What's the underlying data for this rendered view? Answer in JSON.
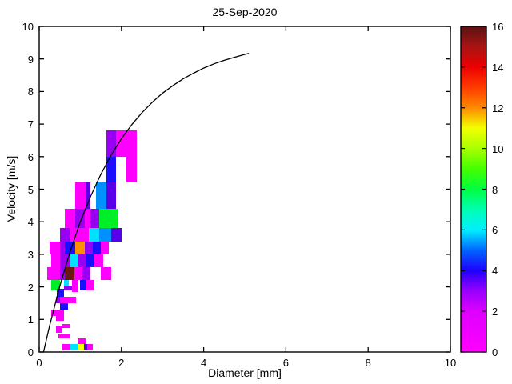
{
  "title": "25-Sep-2020",
  "chart_data": {
    "type": "heatmap",
    "title": "25-Sep-2020",
    "xlabel": "Diameter [mm]",
    "ylabel": "Velocity [m/s]",
    "xlim": [
      0,
      10
    ],
    "ylim": [
      0,
      10
    ],
    "xticks": [
      0,
      2,
      4,
      6,
      8,
      10
    ],
    "yticks": [
      0,
      1,
      2,
      3,
      4,
      5,
      6,
      7,
      8,
      9,
      10
    ],
    "grid": false,
    "colorbar": {
      "lim": [
        0,
        16
      ],
      "ticks": [
        0,
        2,
        4,
        6,
        8,
        10,
        12,
        14,
        16
      ],
      "position": "right",
      "gradient": [
        {
          "v": 0,
          "color": "#FF00FF"
        },
        {
          "v": 2,
          "color": "#DD00FF"
        },
        {
          "v": 3,
          "color": "#9900FF"
        },
        {
          "v": 4,
          "color": "#1E00FF"
        },
        {
          "v": 5,
          "color": "#0066FF"
        },
        {
          "v": 6,
          "color": "#00EFFF"
        },
        {
          "v": 7,
          "color": "#00FFB2"
        },
        {
          "v": 8,
          "color": "#00FF40"
        },
        {
          "v": 9,
          "color": "#44FF00"
        },
        {
          "v": 10,
          "color": "#A8FF00"
        },
        {
          "v": 11,
          "color": "#F2FF00"
        },
        {
          "v": 12,
          "color": "#FF8A00"
        },
        {
          "v": 13,
          "color": "#FF3C00"
        },
        {
          "v": 14,
          "color": "#ED0000"
        },
        {
          "v": 15,
          "color": "#A81414"
        },
        {
          "v": 16,
          "color": "#5C1212"
        }
      ]
    },
    "cells": [
      {
        "d": [
          1.625,
          1.875
        ],
        "v": [
          6.0,
          6.8
        ],
        "value": 2,
        "color": "#9900F2"
      },
      {
        "d": [
          1.875,
          2.375
        ],
        "v": [
          6.0,
          6.8
        ],
        "value": 1,
        "color": "#FF00FF"
      },
      {
        "d": [
          1.625,
          1.875
        ],
        "v": [
          5.2,
          6.0
        ],
        "value": 4,
        "color": "#1A10FF"
      },
      {
        "d": [
          2.125,
          2.375
        ],
        "v": [
          5.2,
          6.0
        ],
        "value": 1,
        "color": "#FF00FF"
      },
      {
        "d": [
          0.875,
          1.125
        ],
        "v": [
          4.4,
          5.2
        ],
        "value": 1,
        "color": "#FF00FF"
      },
      {
        "d": [
          1.125,
          1.25
        ],
        "v": [
          4.4,
          5.2
        ],
        "value": 3,
        "color": "#5A00E8"
      },
      {
        "d": [
          1.375,
          1.625
        ],
        "v": [
          4.4,
          5.2
        ],
        "value": 5,
        "color": "#0091FF"
      },
      {
        "d": [
          1.625,
          1.875
        ],
        "v": [
          4.4,
          5.2
        ],
        "value": 3,
        "color": "#5A00E8"
      },
      {
        "d": [
          0.625,
          0.875
        ],
        "v": [
          3.8,
          4.4
        ],
        "value": 1,
        "color": "#FF00FF"
      },
      {
        "d": [
          0.875,
          1.1
        ],
        "v": [
          3.8,
          4.4
        ],
        "value": 2,
        "color": "#9900F2"
      },
      {
        "d": [
          1.1,
          1.25
        ],
        "v": [
          3.8,
          4.4
        ],
        "value": 1,
        "color": "#FF00FF"
      },
      {
        "d": [
          1.25,
          1.45
        ],
        "v": [
          3.8,
          4.4
        ],
        "value": 2,
        "color": "#9900F2"
      },
      {
        "d": [
          1.45,
          1.9
        ],
        "v": [
          3.8,
          4.4
        ],
        "value": 8,
        "color": "#00EE28"
      },
      {
        "d": [
          0.5,
          0.75
        ],
        "v": [
          3.4,
          3.8
        ],
        "value": 2,
        "color": "#9900F2"
      },
      {
        "d": [
          0.75,
          1.2
        ],
        "v": [
          3.4,
          3.8
        ],
        "value": 1,
        "color": "#FF00FF"
      },
      {
        "d": [
          1.2,
          1.45
        ],
        "v": [
          3.4,
          3.8
        ],
        "value": 6,
        "color": "#00E0FF"
      },
      {
        "d": [
          1.45,
          1.75
        ],
        "v": [
          3.4,
          3.8
        ],
        "value": 5,
        "color": "#0091FF"
      },
      {
        "d": [
          1.75,
          2.0
        ],
        "v": [
          3.4,
          3.8
        ],
        "value": 3,
        "color": "#5A00E8"
      },
      {
        "d": [
          0.25,
          0.5
        ],
        "v": [
          3.0,
          3.4
        ],
        "value": 1,
        "color": "#FF00FF"
      },
      {
        "d": [
          0.5,
          0.625
        ],
        "v": [
          3.0,
          3.4
        ],
        "value": 2,
        "color": "#9900F2"
      },
      {
        "d": [
          0.625,
          0.875
        ],
        "v": [
          3.0,
          3.4
        ],
        "value": 4,
        "color": "#1A10FF"
      },
      {
        "d": [
          0.875,
          1.1
        ],
        "v": [
          3.0,
          3.4
        ],
        "value": 11,
        "color": "#FF9000"
      },
      {
        "d": [
          1.1,
          1.3
        ],
        "v": [
          3.0,
          3.4
        ],
        "value": 2,
        "color": "#9900F2"
      },
      {
        "d": [
          1.3,
          1.5
        ],
        "v": [
          3.0,
          3.4
        ],
        "value": 4,
        "color": "#1A10FF"
      },
      {
        "d": [
          1.5,
          1.7
        ],
        "v": [
          3.0,
          3.4
        ],
        "value": 1,
        "color": "#FF00FF"
      },
      {
        "d": [
          0.3,
          0.5
        ],
        "v": [
          2.6,
          3.0
        ],
        "value": 1,
        "color": "#FF00FF"
      },
      {
        "d": [
          0.5,
          0.75
        ],
        "v": [
          2.6,
          3.0
        ],
        "value": 2,
        "color": "#9900F2"
      },
      {
        "d": [
          0.75,
          0.95
        ],
        "v": [
          2.6,
          3.0
        ],
        "value": 6,
        "color": "#00E0FF"
      },
      {
        "d": [
          0.95,
          1.15
        ],
        "v": [
          2.6,
          3.0
        ],
        "value": 2,
        "color": "#9900F2"
      },
      {
        "d": [
          1.15,
          1.35
        ],
        "v": [
          2.6,
          3.0
        ],
        "value": 4,
        "color": "#1A10FF"
      },
      {
        "d": [
          1.35,
          1.55
        ],
        "v": [
          2.6,
          3.0
        ],
        "value": 1,
        "color": "#FF00FF"
      },
      {
        "d": [
          0.2,
          0.5
        ],
        "v": [
          2.2,
          2.6
        ],
        "value": 1,
        "color": "#FF00FF"
      },
      {
        "d": [
          0.5,
          0.625
        ],
        "v": [
          2.2,
          2.6
        ],
        "value": 2,
        "color": "#9900F2"
      },
      {
        "d": [
          0.625,
          0.85
        ],
        "v": [
          2.2,
          2.6
        ],
        "value": 15,
        "color": "#6B1712"
      },
      {
        "d": [
          0.85,
          1.05
        ],
        "v": [
          2.2,
          2.6
        ],
        "value": 1,
        "color": "#FF00FF"
      },
      {
        "d": [
          1.05,
          1.25
        ],
        "v": [
          2.2,
          2.6
        ],
        "value": 2,
        "color": "#9900F2"
      },
      {
        "d": [
          1.5,
          1.75
        ],
        "v": [
          2.2,
          2.6
        ],
        "value": 1,
        "color": "#FF00FF"
      },
      {
        "d": [
          0.3,
          0.5
        ],
        "v": [
          1.9,
          2.2
        ],
        "value": 8,
        "color": "#00EE28"
      },
      {
        "d": [
          0.6,
          0.72
        ],
        "v": [
          2.05,
          2.2
        ],
        "value": 6,
        "color": "#00E0FF"
      },
      {
        "d": [
          0.6,
          0.8
        ],
        "v": [
          1.9,
          2.05
        ],
        "value": 2,
        "color": "#9900F2"
      },
      {
        "d": [
          0.8,
          0.95
        ],
        "v": [
          1.85,
          2.2
        ],
        "value": 1,
        "color": "#FF00FF"
      },
      {
        "d": [
          1.0,
          1.15
        ],
        "v": [
          1.9,
          2.2
        ],
        "value": 4,
        "color": "#1A10FF"
      },
      {
        "d": [
          1.15,
          1.35
        ],
        "v": [
          1.9,
          2.2
        ],
        "value": 1,
        "color": "#FF00FF"
      },
      {
        "d": [
          0.42,
          0.6
        ],
        "v": [
          1.7,
          1.95
        ],
        "value": 4,
        "color": "#1A10FF"
      },
      {
        "d": [
          0.4,
          0.5
        ],
        "v": [
          1.5,
          1.7
        ],
        "value": 2,
        "color": "#9900F2"
      },
      {
        "d": [
          0.5,
          0.9
        ],
        "v": [
          1.5,
          1.7
        ],
        "value": 1,
        "color": "#FF00FF"
      },
      {
        "d": [
          0.5,
          0.7
        ],
        "v": [
          1.3,
          1.5
        ],
        "value": 4,
        "color": "#1A10FF"
      },
      {
        "d": [
          0.3,
          0.6
        ],
        "v": [
          1.1,
          1.3
        ],
        "value": 1,
        "color": "#FF00FF"
      },
      {
        "d": [
          0.4,
          0.6
        ],
        "v": [
          0.95,
          1.1
        ],
        "value": 1,
        "color": "#FF00FF"
      },
      {
        "d": [
          0.4,
          0.55
        ],
        "v": [
          0.6,
          0.8
        ],
        "value": 1,
        "color": "#FF00FF"
      },
      {
        "d": [
          0.55,
          0.76
        ],
        "v": [
          0.73,
          0.87
        ],
        "value": 1,
        "color": "#FF00FF"
      },
      {
        "d": [
          0.47,
          0.76
        ],
        "v": [
          0.42,
          0.57
        ],
        "value": 1,
        "color": "#FF00FF"
      },
      {
        "d": [
          0.93,
          1.12
        ],
        "v": [
          0.25,
          0.42
        ],
        "value": 1,
        "color": "#FF00FF"
      },
      {
        "d": [
          0.56,
          0.76
        ],
        "v": [
          0.07,
          0.25
        ],
        "value": 1,
        "color": "#FF00FF"
      },
      {
        "d": [
          0.76,
          0.93
        ],
        "v": [
          0.07,
          0.25
        ],
        "value": 6,
        "color": "#00E0FF"
      },
      {
        "d": [
          0.93,
          1.09
        ],
        "v": [
          0.07,
          0.25
        ],
        "value": 10,
        "color": "#F8FF00"
      },
      {
        "d": [
          1.09,
          1.17
        ],
        "v": [
          0.07,
          0.25
        ],
        "value": 3,
        "color": "#5A00E8"
      },
      {
        "d": [
          1.17,
          1.3
        ],
        "v": [
          0.07,
          0.25
        ],
        "value": 1,
        "color": "#FF00FF"
      }
    ],
    "curve": {
      "name": "terminal-velocity-curve",
      "color": "#000000",
      "points": [
        [
          0.105,
          0.0
        ],
        [
          0.25,
          0.79
        ],
        [
          0.5,
          2.02
        ],
        [
          0.75,
          3.08
        ],
        [
          1.0,
          4.0
        ],
        [
          1.25,
          4.78
        ],
        [
          1.5,
          5.46
        ],
        [
          1.75,
          6.05
        ],
        [
          2.0,
          6.55
        ],
        [
          2.25,
          6.98
        ],
        [
          2.5,
          7.35
        ],
        [
          2.75,
          7.67
        ],
        [
          3.0,
          7.95
        ],
        [
          3.25,
          8.18
        ],
        [
          3.5,
          8.39
        ],
        [
          3.75,
          8.56
        ],
        [
          4.0,
          8.72
        ],
        [
          4.25,
          8.85
        ],
        [
          4.5,
          8.96
        ],
        [
          4.75,
          9.05
        ],
        [
          5.0,
          9.14
        ],
        [
          5.1,
          9.17
        ]
      ]
    }
  }
}
